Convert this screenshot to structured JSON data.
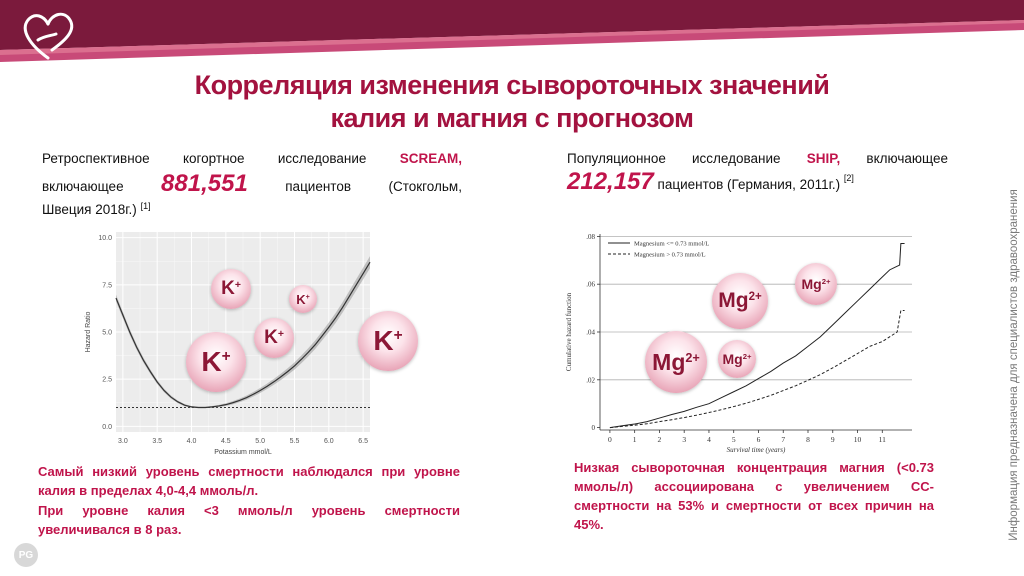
{
  "title": {
    "line1": "Корреляция изменения сывороточных значений",
    "line2": "калия и магния с прогнозом"
  },
  "side_text": "Информация предназначена для специалистов здравоохранения",
  "left": {
    "line1": [
      "Ретроспективное",
      "когортное",
      "исследование",
      "SCREAM,"
    ],
    "line2_a": "включающее",
    "line2_big": "881,551",
    "line2_b": [
      "пациентов",
      "(Стокгольм,"
    ],
    "line3": "Швеция 2018г.)",
    "ref": "[1]",
    "conclusion1": "Самый низкий уровень смертности наблюдался при уровне калия в пределах 4,0-4,4 ммоль/л.",
    "conclusion2": "При уровне калия <3 ммоль/л уровень смертности увеличивался в 8 раз."
  },
  "right": {
    "line1": [
      "Популяционное",
      "исследование",
      "SHIP,",
      "включающее"
    ],
    "line2_big": "212,157",
    "line2_b": "пациентов (Германия, 2011г.)",
    "ref": "[2]",
    "conclusion": "Низкая сывороточная концентрация магния (<0.73 ммоль/л) ассоциирована с увеличением СС-смертности на 53% и смертности от всех причин на 45%."
  },
  "ions": {
    "k_symbol": "K",
    "k_charge": "+",
    "mg_symbol": "Mg",
    "mg_charge": "2+"
  },
  "logo_text": "PG",
  "colors": {
    "accent": "#c0144b",
    "title": "#a3123f",
    "banner": "#7b1a3c"
  },
  "chart_data": [
    {
      "type": "line",
      "xlabel": "Potassium mmol/L",
      "ylabel": "Hazard Ratio",
      "xlim": [
        2.9,
        6.6
      ],
      "ylim": [
        -0.3,
        10.3
      ],
      "x_ticks": [
        "3.0",
        "3.5",
        "4.0",
        "4.5",
        "5.0",
        "5.5",
        "6.0",
        "6.5"
      ],
      "y_ticks": [
        "0.0",
        "2.5",
        "5.0",
        "7.5",
        "10.0"
      ],
      "grid": true,
      "reference_line": 1.0,
      "series": [
        {
          "x": [
            2.9,
            3.0,
            3.1,
            3.2,
            3.3,
            3.4,
            3.5,
            3.6,
            3.7,
            3.8,
            3.9,
            4.0,
            4.1,
            4.2,
            4.3,
            4.4,
            4.5,
            4.6,
            4.7,
            4.8,
            4.9,
            5.0,
            5.1,
            5.2,
            5.3,
            5.4,
            5.5,
            5.6,
            5.7,
            5.8,
            5.9,
            6.0,
            6.1,
            6.2,
            6.3,
            6.4,
            6.5,
            6.6
          ],
          "values": [
            6.8,
            5.9,
            5.0,
            4.2,
            3.5,
            2.9,
            2.35,
            1.9,
            1.55,
            1.3,
            1.12,
            1.03,
            1.0,
            1.0,
            1.03,
            1.08,
            1.15,
            1.25,
            1.37,
            1.52,
            1.7,
            1.9,
            2.12,
            2.36,
            2.62,
            2.9,
            3.2,
            3.55,
            3.92,
            4.32,
            4.78,
            5.25,
            5.75,
            6.3,
            6.9,
            7.5,
            8.1,
            8.7
          ]
        }
      ]
    },
    {
      "type": "line",
      "xlabel": "Survival time (years)",
      "ylabel": "Cumulative hazard function",
      "xlim": [
        -0.4,
        12.2
      ],
      "ylim": [
        -0.001,
        0.081
      ],
      "x_ticks": [
        "0",
        "1",
        "2",
        "3",
        "4",
        "5",
        "6",
        "7",
        "8",
        "9",
        "10",
        "11"
      ],
      "y_ticks": [
        "0",
        ".02",
        ".04",
        ".06",
        ".08"
      ],
      "grid": true,
      "legend": "top-left",
      "series": [
        {
          "name": "Magnesium <= 0.73 mmol/L",
          "style": "solid",
          "x": [
            0,
            0.5,
            1,
            1.5,
            2,
            2.5,
            3,
            3.5,
            4,
            4.5,
            5,
            5.5,
            6,
            6.5,
            7,
            7.5,
            8,
            8.5,
            9,
            9.5,
            10,
            10.5,
            11,
            11.3,
            11.5,
            11.7,
            11.75,
            11.9
          ],
          "values": [
            0,
            0.0008,
            0.0015,
            0.0025,
            0.004,
            0.0055,
            0.0068,
            0.0085,
            0.01,
            0.0125,
            0.015,
            0.0175,
            0.0205,
            0.0235,
            0.027,
            0.03,
            0.034,
            0.038,
            0.043,
            0.048,
            0.053,
            0.058,
            0.063,
            0.066,
            0.067,
            0.068,
            0.077,
            0.077
          ]
        },
        {
          "name": "Magnesium > 0.73 mmol/L",
          "style": "dashed",
          "x": [
            0,
            0.5,
            1,
            1.5,
            2,
            2.5,
            3,
            3.5,
            4,
            4.5,
            5,
            5.5,
            6,
            6.5,
            7,
            7.5,
            8,
            8.5,
            9,
            9.5,
            10,
            10.5,
            11,
            11.3,
            11.6,
            11.75,
            11.9
          ],
          "values": [
            0,
            0.0005,
            0.001,
            0.0016,
            0.0025,
            0.0033,
            0.0042,
            0.0052,
            0.0063,
            0.0075,
            0.0088,
            0.0102,
            0.0118,
            0.0135,
            0.0155,
            0.0175,
            0.0198,
            0.0222,
            0.025,
            0.028,
            0.031,
            0.034,
            0.036,
            0.038,
            0.04,
            0.049,
            0.049
          ]
        }
      ]
    }
  ]
}
